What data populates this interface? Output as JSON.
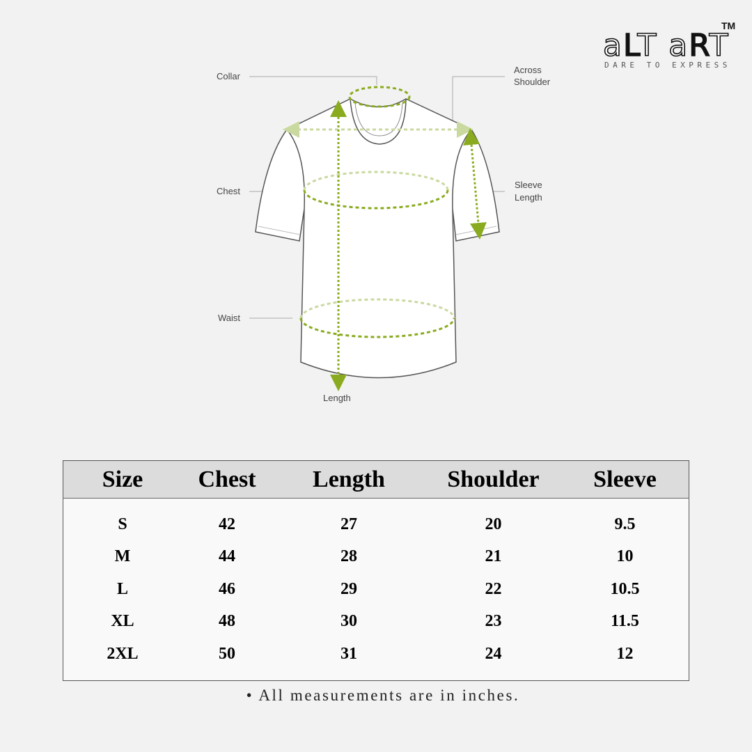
{
  "brand": {
    "name": "aLT aRT",
    "trademark": "TM",
    "tagline": "DARE TO EXPRESS"
  },
  "diagram": {
    "labels": {
      "collar": "Collar",
      "across_shoulder_1": "Across",
      "across_shoulder_2": "Shoulder",
      "chest": "Chest",
      "sleeve_length_1": "Sleeve",
      "sleeve_length_2": "Length",
      "waist": "Waist",
      "length": "Length"
    },
    "colors": {
      "measure_dark": "#8aab1f",
      "measure_light": "#c9d9a0",
      "outline": "#555555"
    }
  },
  "table": {
    "headers": [
      "Size",
      "Chest",
      "Length",
      "Shoulder",
      "Sleeve"
    ],
    "rows": [
      [
        "S",
        "42",
        "27",
        "20",
        "9.5"
      ],
      [
        "M",
        "44",
        "28",
        "21",
        "10"
      ],
      [
        "L",
        "46",
        "29",
        "22",
        "10.5"
      ],
      [
        "XL",
        "48",
        "30",
        "23",
        "11.5"
      ],
      [
        "2XL",
        "50",
        "31",
        "24",
        "12"
      ]
    ]
  },
  "note": "• All measurements are in inches."
}
